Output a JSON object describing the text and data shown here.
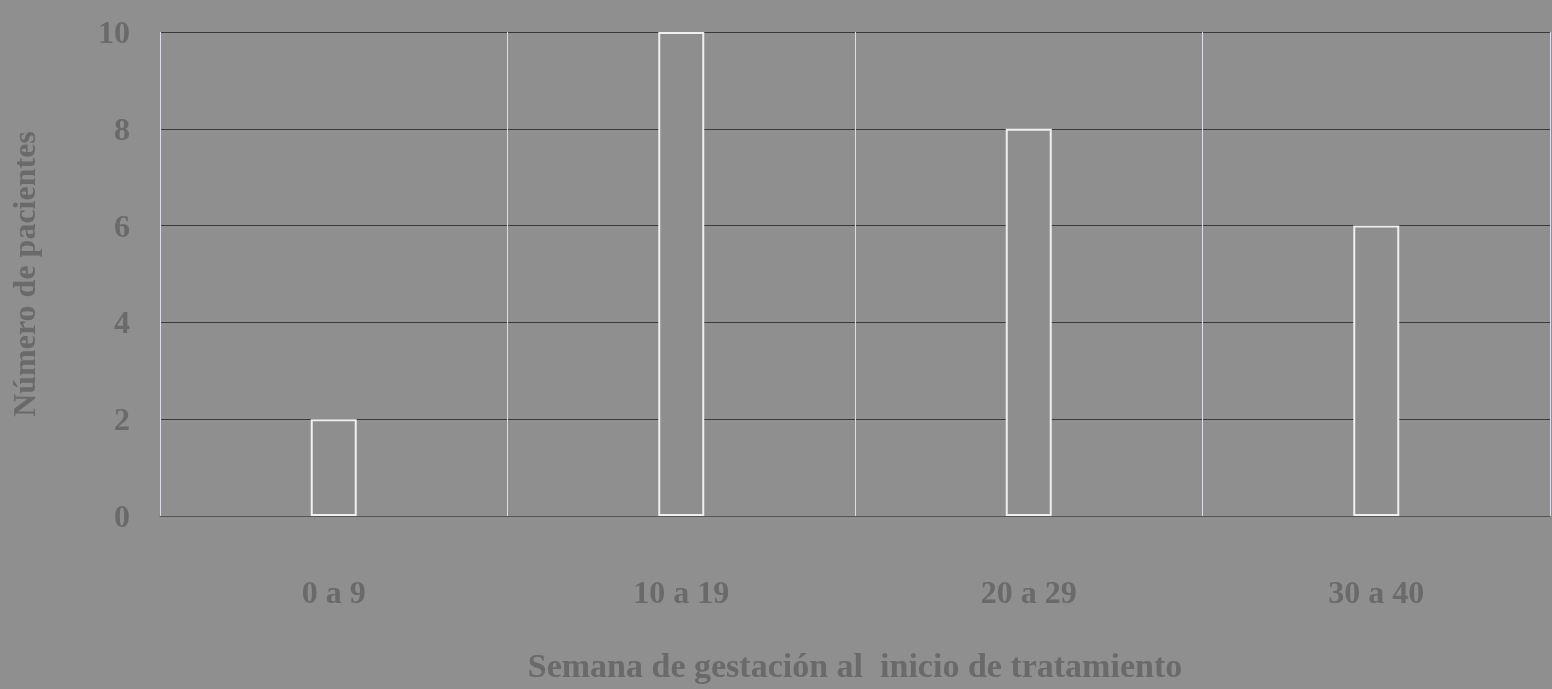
{
  "chart_data": {
    "type": "bar",
    "xlabel": "Semana de gestación al  inicio de tratamiento",
    "ylabel": "Número de pacientes",
    "categories": [
      "0 a 9",
      "10 a 19",
      "20 a 29",
      "30 a 40"
    ],
    "values": [
      2,
      10,
      8,
      6
    ],
    "color": "#8e8e8e",
    "ylim": [
      0,
      10
    ],
    "yticks": [
      0,
      2,
      4,
      6,
      8,
      10
    ],
    "grid": true
  }
}
